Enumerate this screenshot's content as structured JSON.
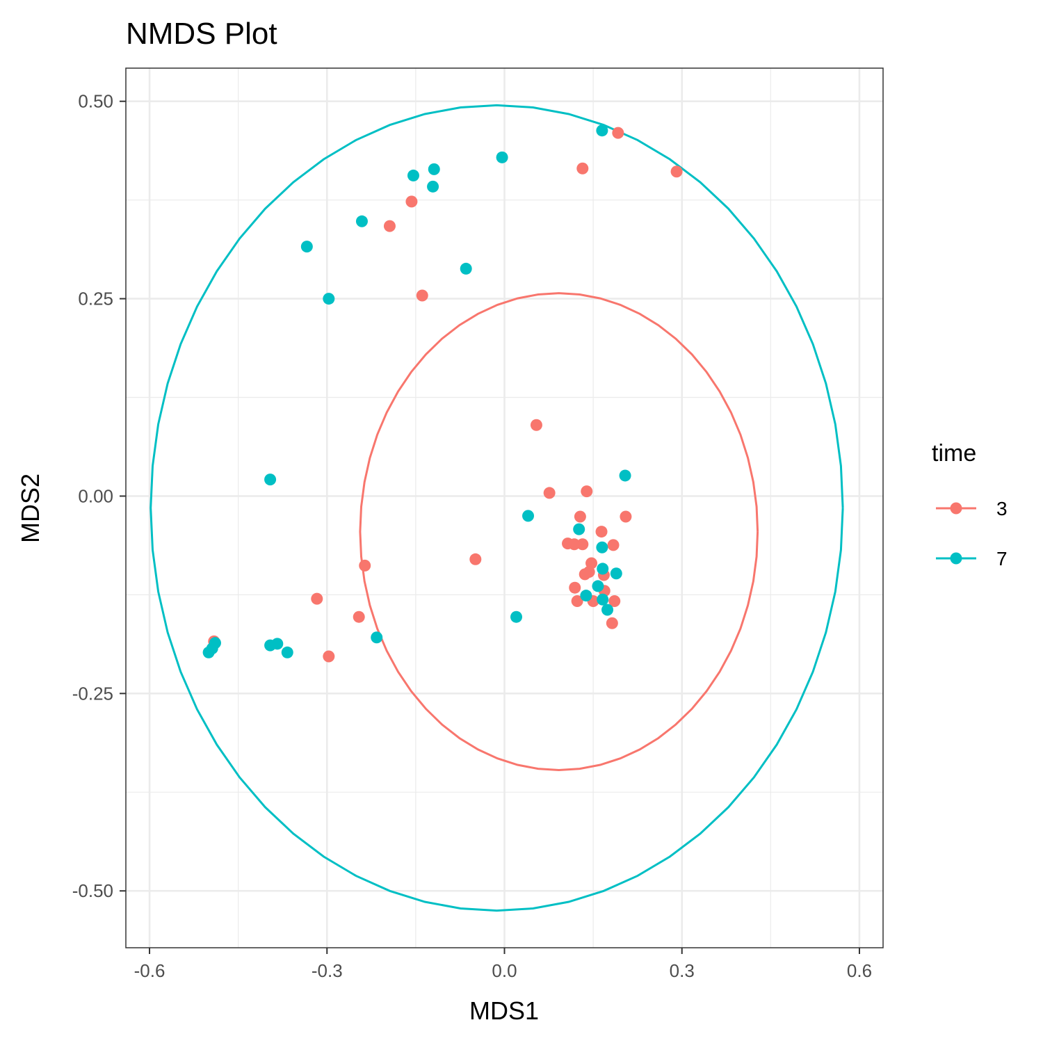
{
  "chart_data": {
    "type": "scatter",
    "title": "NMDS Plot",
    "xlabel": "MDS1",
    "ylabel": "MDS2",
    "xlim": [
      -0.64,
      0.64
    ],
    "ylim": [
      -0.572,
      0.542
    ],
    "x_ticks": [
      -0.6,
      -0.3,
      0.0,
      0.3,
      0.6
    ],
    "x_tick_labels": [
      "-0.6",
      "-0.3",
      "0.0",
      "0.3",
      "0.6"
    ],
    "y_ticks": [
      0.5,
      0.25,
      0.0,
      -0.25,
      -0.5
    ],
    "y_tick_labels": [
      "0.50",
      "0.25",
      "0.00",
      "-0.25",
      "-0.50"
    ],
    "grid": true,
    "legend": {
      "title": "time",
      "position": "right"
    },
    "ellipses": true,
    "series": [
      {
        "name": "3",
        "color": "#F8766D",
        "ellipse": {
          "center": [
            0.092,
            -0.045
          ],
          "rx": 0.336,
          "ry": 0.302
        },
        "points": [
          [
            0.192,
            0.46
          ],
          [
            0.132,
            0.415
          ],
          [
            0.291,
            0.411
          ],
          [
            -0.157,
            0.373
          ],
          [
            -0.194,
            0.342
          ],
          [
            -0.139,
            0.254
          ],
          [
            0.054,
            0.09
          ],
          [
            0.076,
            0.004
          ],
          [
            0.139,
            0.006
          ],
          [
            0.205,
            -0.026
          ],
          [
            0.128,
            -0.026
          ],
          [
            0.164,
            -0.045
          ],
          [
            0.107,
            -0.06
          ],
          [
            0.118,
            -0.061
          ],
          [
            0.132,
            -0.061
          ],
          [
            0.184,
            -0.062
          ],
          [
            -0.049,
            -0.08
          ],
          [
            0.147,
            -0.085
          ],
          [
            -0.236,
            -0.088
          ],
          [
            0.143,
            -0.096
          ],
          [
            0.136,
            -0.099
          ],
          [
            0.168,
            -0.1
          ],
          [
            0.119,
            -0.116
          ],
          [
            0.169,
            -0.12
          ],
          [
            -0.317,
            -0.13
          ],
          [
            0.123,
            -0.133
          ],
          [
            0.15,
            -0.133
          ],
          [
            0.186,
            -0.133
          ],
          [
            -0.246,
            -0.153
          ],
          [
            0.182,
            -0.161
          ],
          [
            -0.491,
            -0.184
          ],
          [
            -0.297,
            -0.203
          ]
        ]
      },
      {
        "name": "7",
        "color": "#00BFC4",
        "ellipse": {
          "center": [
            -0.013,
            -0.015
          ],
          "rx": 0.585,
          "ry": 0.51
        },
        "points": [
          [
            0.165,
            0.463
          ],
          [
            -0.004,
            0.429
          ],
          [
            -0.119,
            0.414
          ],
          [
            -0.154,
            0.406
          ],
          [
            -0.121,
            0.392
          ],
          [
            -0.241,
            0.348
          ],
          [
            -0.334,
            0.316
          ],
          [
            -0.065,
            0.288
          ],
          [
            -0.297,
            0.25
          ],
          [
            0.204,
            0.026
          ],
          [
            -0.396,
            0.021
          ],
          [
            0.04,
            -0.025
          ],
          [
            0.126,
            -0.042
          ],
          [
            0.165,
            -0.065
          ],
          [
            0.166,
            -0.092
          ],
          [
            0.189,
            -0.098
          ],
          [
            0.158,
            -0.114
          ],
          [
            0.138,
            -0.126
          ],
          [
            0.166,
            -0.131
          ],
          [
            0.174,
            -0.144
          ],
          [
            0.02,
            -0.153
          ],
          [
            -0.216,
            -0.179
          ],
          [
            -0.384,
            -0.187
          ],
          [
            -0.396,
            -0.189
          ],
          [
            -0.489,
            -0.186
          ],
          [
            -0.494,
            -0.193
          ],
          [
            -0.367,
            -0.198
          ],
          [
            -0.5,
            -0.198
          ]
        ]
      }
    ]
  }
}
